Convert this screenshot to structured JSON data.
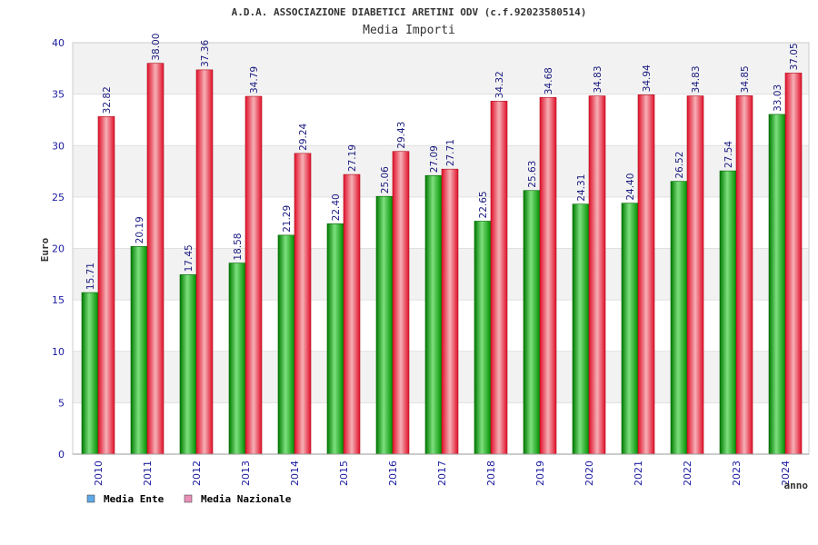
{
  "chart_data": {
    "type": "bar",
    "title": "A.D.A. ASSOCIAZIONE DIABETICI ARETINI ODV (c.f.92023580514)",
    "subtitle": "Media Importi",
    "xlabel": "anno",
    "ylabel": "Euro",
    "ylim": [
      0,
      40
    ],
    "yticks": [
      "0",
      "5",
      "10",
      "15",
      "20",
      "25",
      "30",
      "35",
      "40"
    ],
    "grid": true,
    "legend_position": "bottom-left",
    "categories": [
      "2010",
      "2011",
      "2012",
      "2013",
      "2014",
      "2015",
      "2016",
      "2017",
      "2018",
      "2019",
      "2020",
      "2021",
      "2022",
      "2023",
      "2024"
    ],
    "series": [
      {
        "name": "Media Ente",
        "color": "#00a000",
        "legend_color": "#5ea8e8",
        "values": [
          15.71,
          20.19,
          17.45,
          18.58,
          21.29,
          22.4,
          25.06,
          27.09,
          22.65,
          25.63,
          24.31,
          24.4,
          26.52,
          27.54,
          33.03
        ],
        "labels": [
          "15.71",
          "20.19",
          "17.45",
          "18.58",
          "21.29",
          "22.40",
          "25.06",
          "27.09",
          "22.65",
          "25.63",
          "24.31",
          "24.40",
          "26.52",
          "27.54",
          "33.03"
        ]
      },
      {
        "name": "Media Nazionale",
        "color": "#e8202a",
        "legend_color": "#e890b8",
        "values": [
          32.82,
          38.0,
          37.36,
          34.79,
          29.24,
          27.19,
          29.43,
          27.71,
          34.32,
          34.68,
          34.83,
          34.94,
          34.83,
          34.85,
          37.05
        ],
        "labels": [
          "32.82",
          "38.00",
          "37.36",
          "34.79",
          "29.24",
          "27.19",
          "29.43",
          "27.71",
          "34.32",
          "34.68",
          "34.83",
          "34.94",
          "34.83",
          "34.85",
          "37.05"
        ]
      }
    ]
  }
}
